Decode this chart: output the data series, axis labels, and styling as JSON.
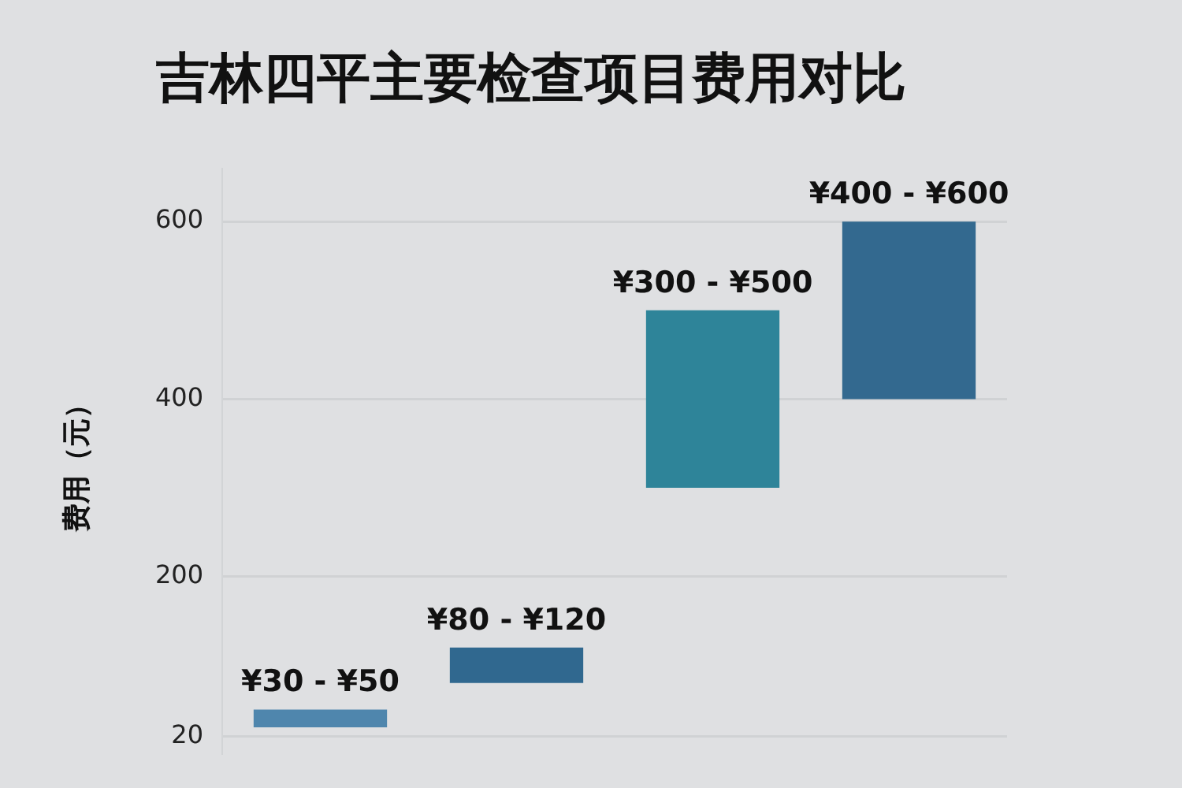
{
  "chart_data": {
    "type": "bar",
    "title": "吉林四平主要检查项目费用对比",
    "ylabel": "费用（元）",
    "categories": [
      null,
      null,
      null,
      null
    ],
    "base": [
      30,
      80,
      300,
      400
    ],
    "values": [
      20,
      40,
      200,
      200
    ],
    "colors": [
      "#4f86ad",
      "#30688f",
      "#2e8499",
      "#33698f"
    ],
    "annotations": [
      {
        "text": "¥30 - ¥50",
        "y": 50
      },
      {
        "text": "¥80 - ¥120",
        "y": 120
      },
      {
        "text": "¥300 - ¥500",
        "y": 500
      },
      {
        "text": "¥400 - ¥600",
        "y": 600
      }
    ],
    "ylim": [
      0,
      660
    ],
    "yticks": [
      20,
      200,
      400,
      600
    ],
    "grid": "y",
    "legend": false
  }
}
